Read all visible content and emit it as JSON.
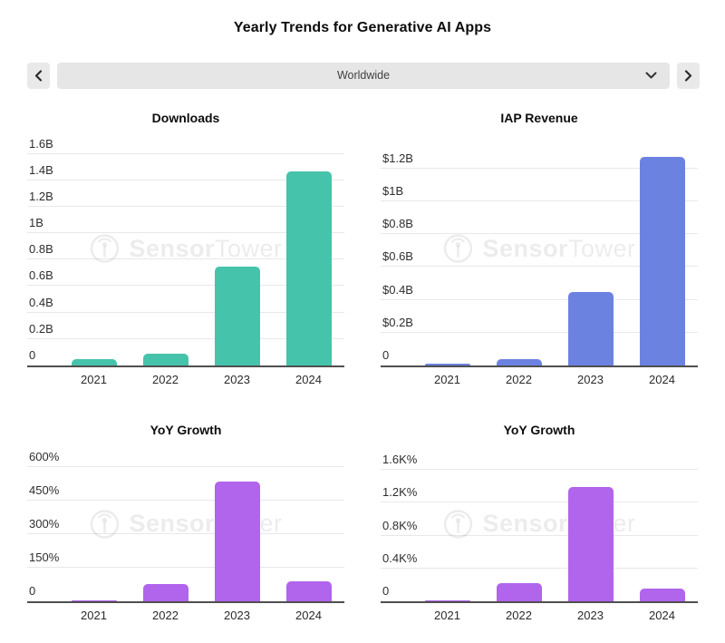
{
  "header": {
    "title": "Yearly Trends for Generative AI Apps"
  },
  "selector": {
    "value": "Worldwide",
    "prev_icon": "chevron-left",
    "next_icon": "chevron-right",
    "dropdown_icon": "chevron-down"
  },
  "watermark": {
    "icon": "sensor-tower-logo",
    "brand_first": "Sensor",
    "brand_second": "Tower"
  },
  "colors": {
    "downloads_bar": "#46c3ab",
    "revenue_bar": "#6c82e1",
    "growth_bar": "#b164ec",
    "gridline": "#e8e8e8",
    "axis": "#4f4f4f"
  },
  "chart_data": [
    {
      "type": "bar",
      "title": "Downloads",
      "categories": [
        "2021",
        "2022",
        "2023",
        "2024"
      ],
      "values": [
        0.05,
        0.09,
        0.75,
        1.47
      ],
      "value_unit": "billions of downloads",
      "ylim": [
        0,
        1.7
      ],
      "grid": true,
      "legend": "none",
      "bar_color": "#46c3ab",
      "yticks": [
        {
          "label": "1.6B",
          "value": 1.6
        },
        {
          "label": "1.4B",
          "value": 1.4
        },
        {
          "label": "1.2B",
          "value": 1.2
        },
        {
          "label": "1B",
          "value": 1.0
        },
        {
          "label": "0.8B",
          "value": 0.8
        },
        {
          "label": "0.6B",
          "value": 0.6
        },
        {
          "label": "0.4B",
          "value": 0.4
        },
        {
          "label": "0.2B",
          "value": 0.2
        },
        {
          "label": "0",
          "value": 0
        }
      ]
    },
    {
      "type": "bar",
      "title": "IAP Revenue",
      "categories": [
        "2021",
        "2022",
        "2023",
        "2024"
      ],
      "values": [
        0.01,
        0.04,
        0.45,
        1.27
      ],
      "value_unit": "billions USD",
      "ylim": [
        0,
        1.37
      ],
      "grid": true,
      "legend": "none",
      "bar_color": "#6c82e1",
      "yticks": [
        {
          "label": "$1.2B",
          "value": 1.2
        },
        {
          "label": "$1B",
          "value": 1.0
        },
        {
          "label": "$0.8B",
          "value": 0.8
        },
        {
          "label": "$0.6B",
          "value": 0.6
        },
        {
          "label": "$0.4B",
          "value": 0.4
        },
        {
          "label": "$0.2B",
          "value": 0.2
        },
        {
          "label": "0",
          "value": 0
        }
      ]
    },
    {
      "type": "bar",
      "title": "YoY Growth",
      "categories": [
        "2021",
        "2022",
        "2023",
        "2024"
      ],
      "values": [
        2,
        75,
        535,
        88
      ],
      "value_unit": "percent",
      "ylim": [
        0,
        664
      ],
      "grid": true,
      "legend": "none",
      "bar_color": "#b164ec",
      "yticks": [
        {
          "label": "600%",
          "value": 600
        },
        {
          "label": "450%",
          "value": 450
        },
        {
          "label": "300%",
          "value": 300
        },
        {
          "label": "150%",
          "value": 150
        },
        {
          "label": "0",
          "value": 0
        }
      ]
    },
    {
      "type": "bar",
      "title": "YoY Growth",
      "categories": [
        "2021",
        "2022",
        "2023",
        "2024"
      ],
      "values": [
        10,
        220,
        1390,
        150
      ],
      "value_unit": "percent",
      "ylim": [
        0,
        1810
      ],
      "grid": true,
      "legend": "none",
      "bar_color": "#b164ec",
      "yticks": [
        {
          "label": "1.6K%",
          "value": 1600
        },
        {
          "label": "1.2K%",
          "value": 1200
        },
        {
          "label": "0.8K%",
          "value": 800
        },
        {
          "label": "0.4K%",
          "value": 400
        },
        {
          "label": "0",
          "value": 0
        }
      ]
    }
  ]
}
